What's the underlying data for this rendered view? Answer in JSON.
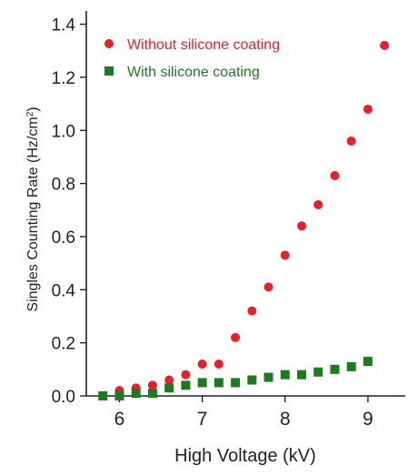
{
  "chart_data": {
    "type": "scatter",
    "xlabel": "High Voltage (kV)",
    "ylabel": "Singles Counting Rate (Hz/cm",
    "ylabel_sup": "2",
    "ylabel_close": ")",
    "xlim": [
      5.6,
      9.45
    ],
    "ylim": [
      0.0,
      1.45
    ],
    "xticks": [
      6,
      7,
      8,
      9
    ],
    "xtick_labels": [
      "6",
      "7",
      "8",
      "9"
    ],
    "yticks": [
      0.0,
      0.2,
      0.4,
      0.6,
      0.8,
      1.0,
      1.2,
      1.4
    ],
    "ytick_labels": [
      "0.0",
      "0.2",
      "0.4",
      "0.6",
      "0.8",
      "1.0",
      "1.2",
      "1.4"
    ],
    "grid": false,
    "legend_position": "top-left",
    "series": [
      {
        "name": "Without silicone coating",
        "marker": "circle",
        "color": "#e8202a",
        "x": [
          6.0,
          6.2,
          6.4,
          6.6,
          6.8,
          7.0,
          7.2,
          7.4,
          7.6,
          7.8,
          8.0,
          8.2,
          8.4,
          8.6,
          8.8,
          9.0,
          9.2
        ],
        "y": [
          0.02,
          0.03,
          0.04,
          0.06,
          0.08,
          0.12,
          0.12,
          0.22,
          0.32,
          0.41,
          0.53,
          0.64,
          0.72,
          0.83,
          0.96,
          1.08,
          1.32
        ]
      },
      {
        "name": "With silicone coating",
        "marker": "square",
        "color": "#1e7a1e",
        "x": [
          5.8,
          6.0,
          6.2,
          6.4,
          6.6,
          6.8,
          7.0,
          7.2,
          7.4,
          7.6,
          7.8,
          8.0,
          8.2,
          8.4,
          8.6,
          8.8,
          9.0
        ],
        "y": [
          0.0,
          0.0,
          0.01,
          0.01,
          0.03,
          0.04,
          0.05,
          0.05,
          0.05,
          0.06,
          0.07,
          0.08,
          0.08,
          0.09,
          0.1,
          0.11,
          0.13
        ]
      }
    ]
  }
}
